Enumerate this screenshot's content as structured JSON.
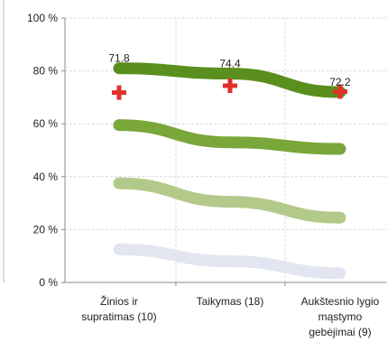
{
  "chart_data": {
    "type": "line",
    "categories": [
      "Žinios ir supratimas (10)",
      "Taikymas (18)",
      "Aukštesnio lygio mąstymo gebėjimai (9)"
    ],
    "category_lines": [
      [
        "Žinios ir",
        "supratimas (10)"
      ],
      [
        "Taikymas (18)"
      ],
      [
        "Aukštesnio lygio",
        "mąstymo",
        "gebėjimai (9)"
      ]
    ],
    "ylim": [
      0,
      100
    ],
    "yticks": [
      "0 %",
      "20 %",
      "40 %",
      "60 %",
      "80 %",
      "100 %"
    ],
    "ytick_values": [
      0,
      20,
      40,
      60,
      80,
      100
    ],
    "grid": true,
    "series": [
      {
        "values": [
          81,
          79,
          72
        ],
        "color": "#5a8f1e",
        "labels": [
          "71.8",
          "74.4",
          "72.2"
        ]
      },
      {
        "values": [
          59.5,
          53,
          50.5
        ],
        "color": "#7aa73a"
      },
      {
        "values": [
          37.5,
          30.5,
          24.5
        ],
        "color": "#b3c98a"
      },
      {
        "values": [
          12.5,
          8,
          3.5
        ],
        "color": "#e3e6f0"
      }
    ],
    "markers": {
      "symbol": "cross",
      "values": [
        71.8,
        74.4,
        72.2
      ],
      "color": "#e0302a"
    }
  }
}
